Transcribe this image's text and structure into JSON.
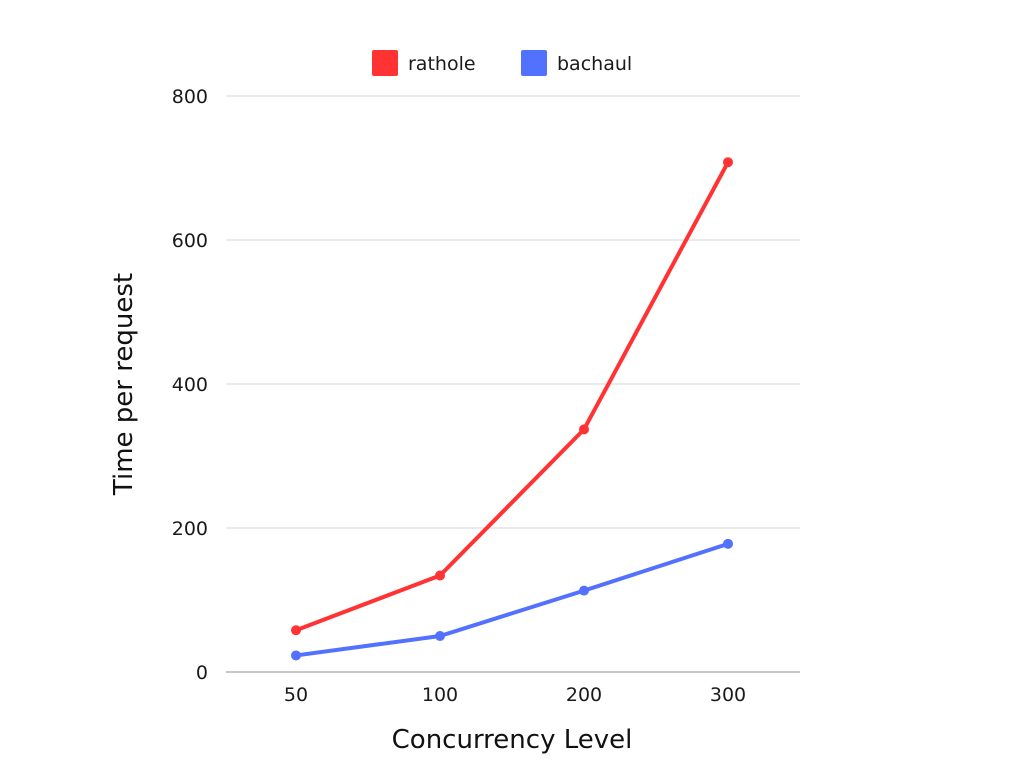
{
  "chart_data": {
    "type": "line",
    "title": "",
    "xlabel": "Concurrency Level",
    "ylabel": "Time per request",
    "categories": [
      "50",
      "100",
      "200",
      "300"
    ],
    "ylim": [
      0,
      800
    ],
    "yticks": [
      0,
      200,
      400,
      600,
      800
    ],
    "grid": true,
    "legend_position": "top-center",
    "series": [
      {
        "name": "rathole",
        "color": "#ff3333",
        "values": [
          58,
          134,
          337,
          708
        ]
      },
      {
        "name": "bachaul",
        "color": "#5271ff",
        "values": [
          23,
          50,
          113,
          178
        ]
      }
    ]
  }
}
